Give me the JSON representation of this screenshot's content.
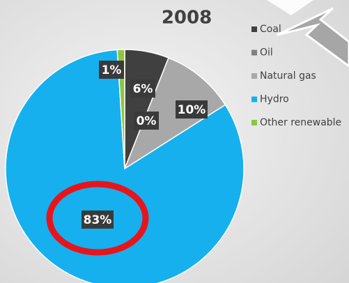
{
  "chart_data": {
    "type": "pie",
    "title": "2008",
    "categories": [
      "Coal",
      "Oil",
      "Natural gas",
      "Hydro",
      "Other renewable"
    ],
    "values": [
      6,
      0,
      10,
      83,
      1
    ],
    "value_labels": [
      "6%",
      "0%",
      "10%",
      "83%",
      "1%"
    ],
    "colors": [
      "#404040",
      "#808080",
      "#a8a8a8",
      "#16b0ee",
      "#8dc63f"
    ]
  }
}
